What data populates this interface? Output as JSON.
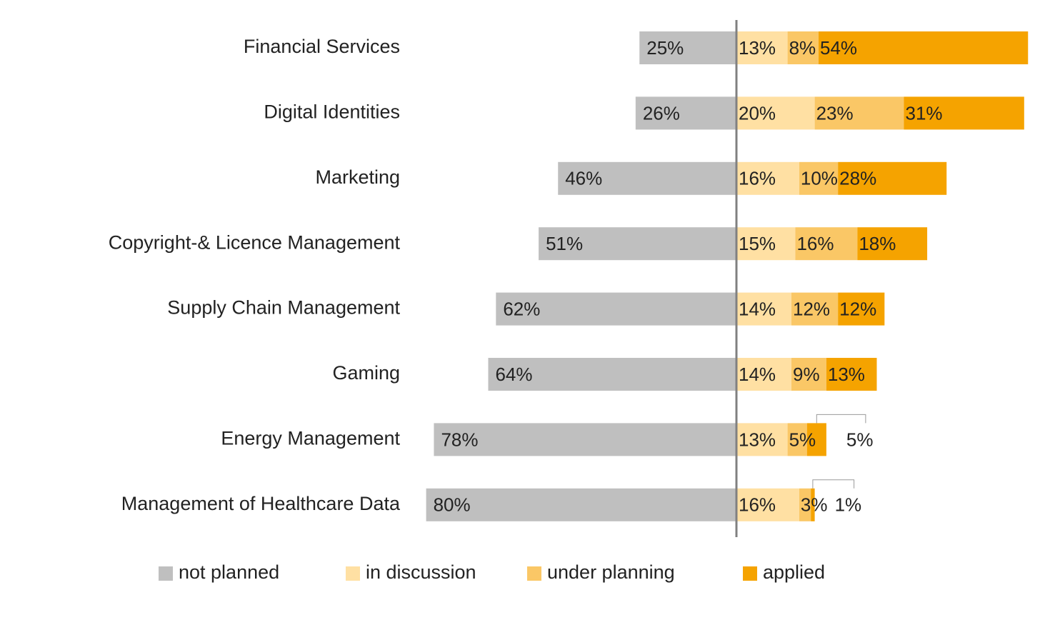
{
  "chart_data": {
    "type": "diverging-bar",
    "categories": [
      "Financial Services",
      "Digital Identities",
      "Marketing",
      "Copyright-& Licence Management",
      "Supply Chain Management",
      "Gaming",
      "Energy Management",
      "Management of Healthcare Data"
    ],
    "series": [
      {
        "name": "not planned",
        "color": "#bfbfbf",
        "values": [
          25,
          26,
          46,
          51,
          62,
          64,
          78,
          80
        ],
        "value_labels": [
          "25%",
          "26%",
          "46%",
          "51%",
          "62%",
          "64%",
          "78%",
          "80%"
        ]
      },
      {
        "name": "in discussion",
        "color": "#ffe0a3",
        "values": [
          13,
          20,
          16,
          15,
          14,
          14,
          13,
          16
        ],
        "value_labels": [
          "13%",
          "20%",
          "16%",
          "15%",
          "14%",
          "14%",
          "13%",
          "16%"
        ]
      },
      {
        "name": "under planning",
        "color": "#fac766",
        "values": [
          8,
          23,
          10,
          16,
          12,
          9,
          5,
          3
        ],
        "value_labels": [
          "8%",
          "23%",
          "10%",
          "16%",
          "12%",
          "9%",
          "5%",
          "3%"
        ]
      },
      {
        "name": "applied",
        "color": "#f5a300",
        "values": [
          54,
          31,
          28,
          18,
          12,
          13,
          5,
          1
        ],
        "value_labels": [
          "54%",
          "31%",
          "28%",
          "18%",
          "12%",
          "13%",
          "5%",
          "1%"
        ]
      }
    ],
    "legend": "bottom"
  }
}
